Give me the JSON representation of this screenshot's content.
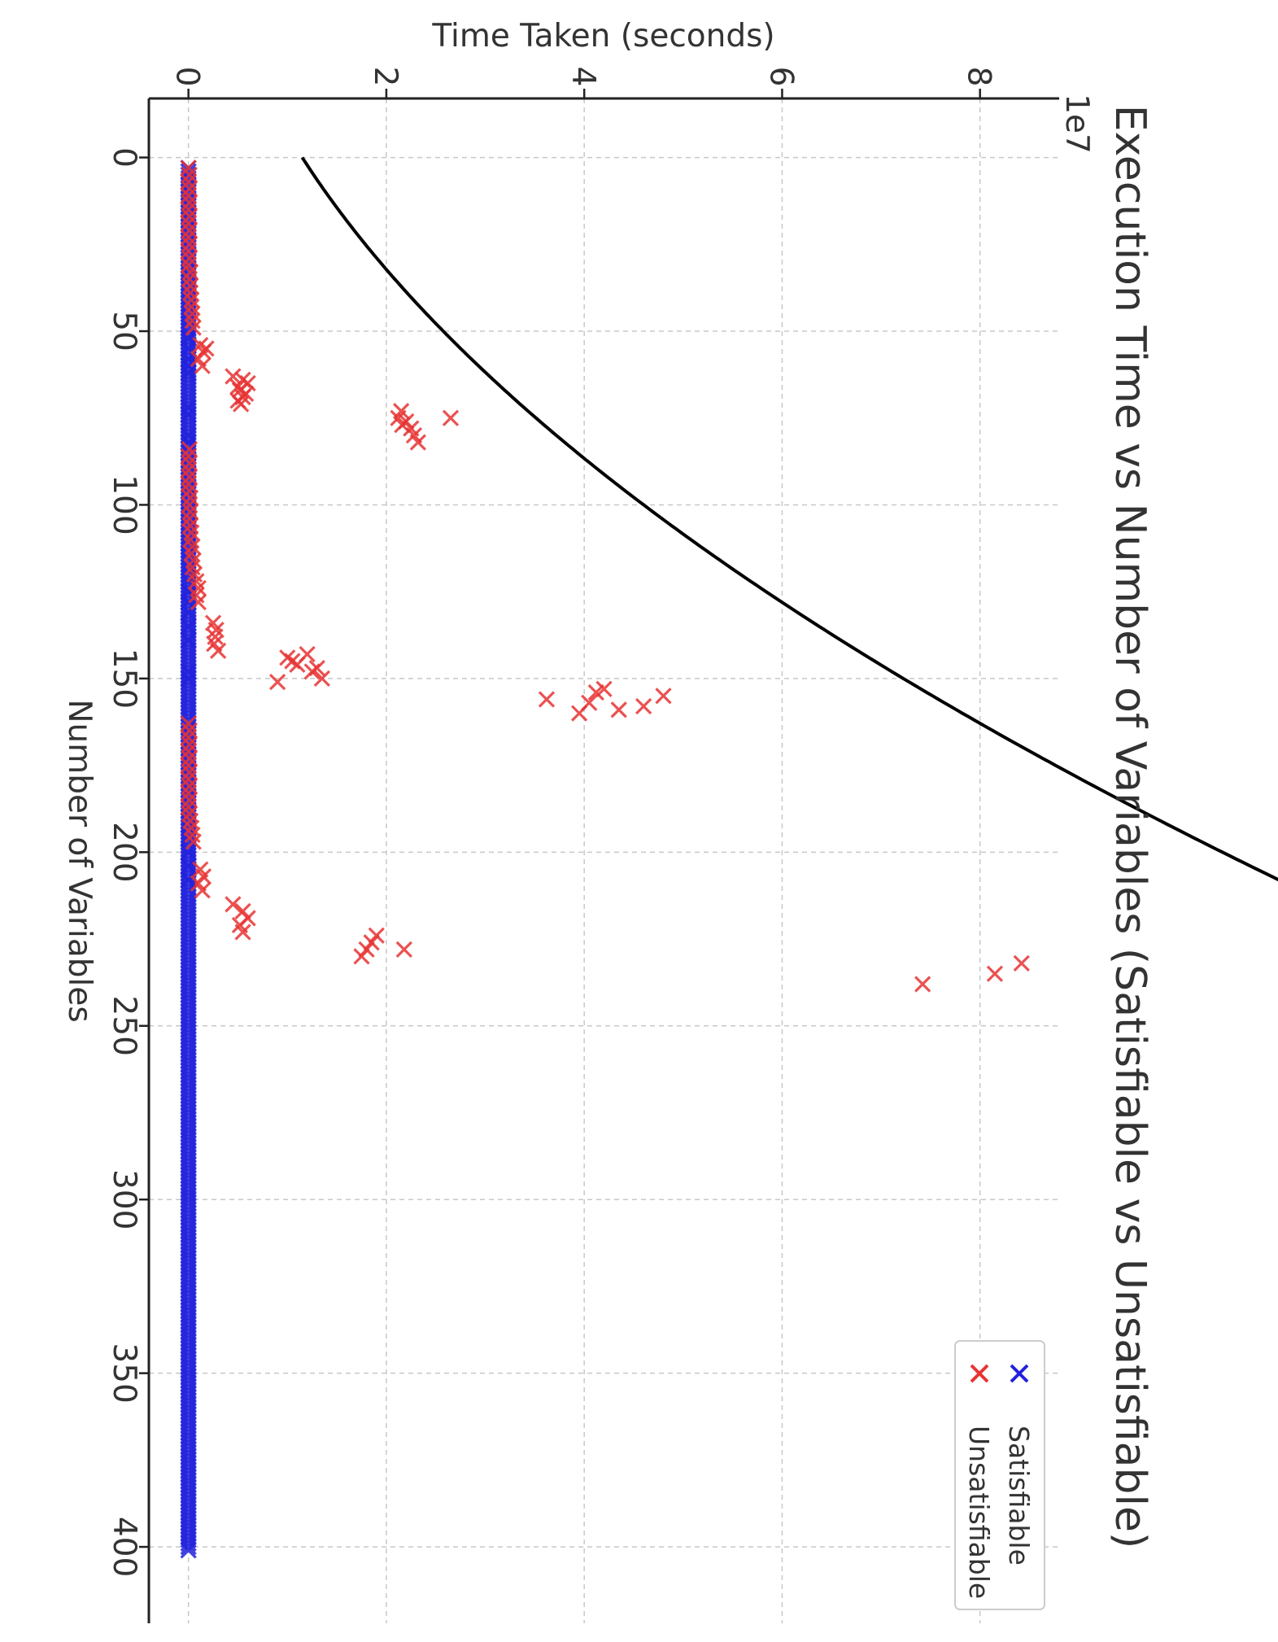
{
  "chart_data": {
    "type": "scatter",
    "title": "Execution Time vs Number of Variables (Satisfiable vs Unsatisfiable)",
    "xlabel": "Number of Variables",
    "ylabel": "Time Taken (seconds)",
    "y_offset_text": "1e7",
    "y_multiplier": 10000000,
    "xlim": [
      -17,
      422
    ],
    "ylim": [
      -0.4,
      8.8
    ],
    "x_ticks": [
      0,
      50,
      100,
      150,
      200,
      250,
      300,
      350,
      400
    ],
    "y_ticks": [
      0,
      2,
      4,
      6,
      8
    ],
    "grid": true,
    "legend_position": "upper right",
    "marker": "x",
    "series": [
      {
        "name": "Satisfiable",
        "color": "#2222dd",
        "points_x_range": [
          3,
          401
        ],
        "points_x_step": 1,
        "points_y_value": 0.0,
        "points": [
          [
            52,
            0.0
          ],
          [
            55,
            0.0
          ],
          [
            58,
            0.0
          ],
          [
            60,
            0.0
          ],
          [
            62,
            0.0
          ],
          [
            72,
            0.0
          ],
          [
            74,
            0.0
          ],
          [
            80,
            0.0
          ],
          [
            82,
            0.0
          ],
          [
            125,
            0.0
          ],
          [
            128,
            0.0
          ],
          [
            131,
            0.0
          ],
          [
            135,
            0.0
          ],
          [
            139,
            0.0
          ],
          [
            148,
            0.0
          ],
          [
            150,
            0.0
          ],
          [
            196,
            0.0
          ],
          [
            200,
            0.0
          ],
          [
            204,
            0.0
          ],
          [
            208,
            0.0
          ]
        ]
      },
      {
        "name": "Unsatisfiable",
        "color": "#e83333",
        "points": [
          [
            3,
            0.0
          ],
          [
            5,
            0.01
          ],
          [
            7,
            0.0
          ],
          [
            9,
            0.01
          ],
          [
            11,
            0.0
          ],
          [
            13,
            0.01
          ],
          [
            15,
            0.0
          ],
          [
            17,
            0.01
          ],
          [
            19,
            0.0
          ],
          [
            21,
            0.01
          ],
          [
            23,
            0.0
          ],
          [
            25,
            0.01
          ],
          [
            27,
            0.0
          ],
          [
            29,
            0.01
          ],
          [
            31,
            0.0
          ],
          [
            33,
            0.02
          ],
          [
            35,
            0.01
          ],
          [
            37,
            0.02
          ],
          [
            39,
            0.02
          ],
          [
            41,
            0.03
          ],
          [
            43,
            0.03
          ],
          [
            45,
            0.04
          ],
          [
            47,
            0.04
          ],
          [
            49,
            0.05
          ],
          [
            54,
            0.12
          ],
          [
            56,
            0.15
          ],
          [
            58,
            0.1
          ],
          [
            60,
            0.14
          ],
          [
            55,
            0.18
          ],
          [
            63,
            0.45
          ],
          [
            64,
            0.55
          ],
          [
            65,
            0.6
          ],
          [
            66,
            0.5
          ],
          [
            67,
            0.52
          ],
          [
            68,
            0.58
          ],
          [
            69,
            0.55
          ],
          [
            70,
            0.5
          ],
          [
            71,
            0.53
          ],
          [
            73,
            2.15
          ],
          [
            75,
            2.12
          ],
          [
            76,
            2.2
          ],
          [
            77,
            2.16
          ],
          [
            78,
            2.25
          ],
          [
            80,
            2.28
          ],
          [
            82,
            2.32
          ],
          [
            75,
            2.65
          ],
          [
            84,
            0.01
          ],
          [
            86,
            0.0
          ],
          [
            88,
            0.01
          ],
          [
            90,
            0.0
          ],
          [
            92,
            0.01
          ],
          [
            94,
            0.0
          ],
          [
            96,
            0.01
          ],
          [
            98,
            0.02
          ],
          [
            100,
            0.01
          ],
          [
            102,
            0.02
          ],
          [
            104,
            0.01
          ],
          [
            106,
            0.02
          ],
          [
            108,
            0.03
          ],
          [
            110,
            0.02
          ],
          [
            112,
            0.04
          ],
          [
            114,
            0.03
          ],
          [
            116,
            0.05
          ],
          [
            118,
            0.04
          ],
          [
            120,
            0.06
          ],
          [
            122,
            0.08
          ],
          [
            124,
            0.1
          ],
          [
            126,
            0.08
          ],
          [
            128,
            0.1
          ],
          [
            134,
            0.25
          ],
          [
            136,
            0.28
          ],
          [
            138,
            0.27
          ],
          [
            140,
            0.26
          ],
          [
            142,
            0.3
          ],
          [
            143,
            1.2
          ],
          [
            144,
            1.0
          ],
          [
            145,
            1.05
          ],
          [
            146,
            1.1
          ],
          [
            147,
            1.3
          ],
          [
            148,
            1.25
          ],
          [
            150,
            1.35
          ],
          [
            151,
            0.9
          ],
          [
            153,
            4.2
          ],
          [
            154,
            4.12
          ],
          [
            155,
            4.8
          ],
          [
            156,
            3.62
          ],
          [
            157,
            4.05
          ],
          [
            158,
            4.6
          ],
          [
            159,
            4.35
          ],
          [
            160,
            3.95
          ],
          [
            163,
            0.0
          ],
          [
            165,
            0.01
          ],
          [
            167,
            0.0
          ],
          [
            169,
            0.01
          ],
          [
            171,
            0.0
          ],
          [
            173,
            0.01
          ],
          [
            175,
            0.0
          ],
          [
            177,
            0.01
          ],
          [
            179,
            0.0
          ],
          [
            181,
            0.01
          ],
          [
            183,
            0.0
          ],
          [
            185,
            0.01
          ],
          [
            187,
            0.0
          ],
          [
            189,
            0.01
          ],
          [
            191,
            0.02
          ],
          [
            193,
            0.03
          ],
          [
            195,
            0.04
          ],
          [
            197,
            0.05
          ],
          [
            205,
            0.12
          ],
          [
            207,
            0.15
          ],
          [
            209,
            0.1
          ],
          [
            211,
            0.14
          ],
          [
            215,
            0.45
          ],
          [
            217,
            0.55
          ],
          [
            219,
            0.6
          ],
          [
            221,
            0.52
          ],
          [
            223,
            0.55
          ],
          [
            224,
            1.9
          ],
          [
            226,
            1.85
          ],
          [
            228,
            1.8
          ],
          [
            230,
            1.75
          ],
          [
            228,
            2.18
          ],
          [
            232,
            8.42
          ],
          [
            235,
            8.15
          ],
          [
            238,
            7.42
          ]
        ]
      }
    ],
    "fit_curve": {
      "x_range": [
        0,
        236
      ],
      "coefficients_quadratic": [
        1.15,
        0.0225,
        0.00012
      ]
    }
  }
}
